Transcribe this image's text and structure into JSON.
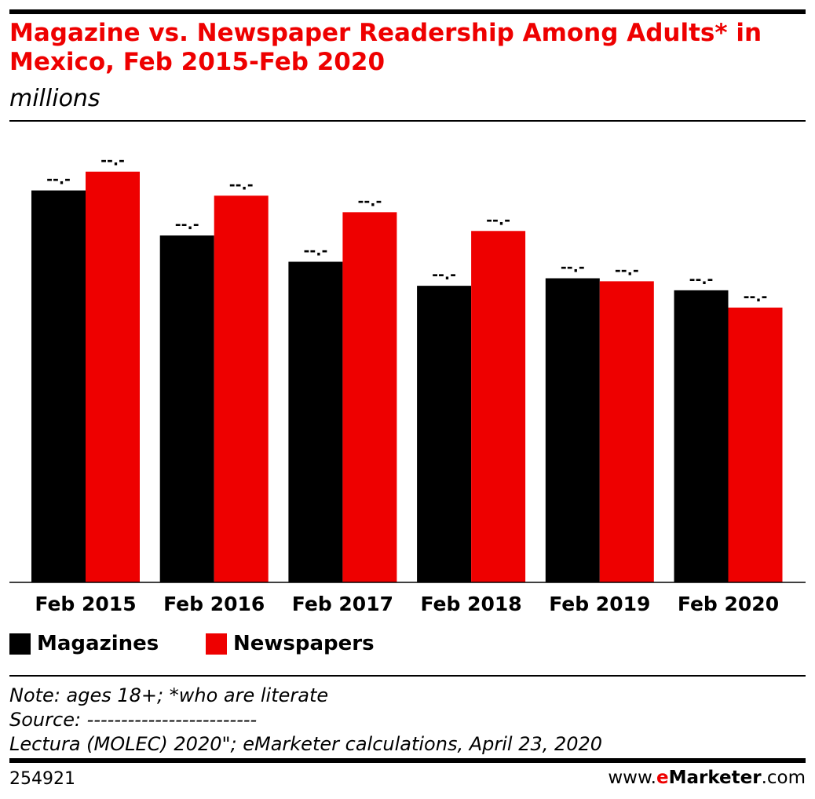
{
  "header": {
    "title": "Magazine vs. Newspaper Readership Among Adults* in Mexico, Feb 2015-Feb 2020",
    "subtitle": "millions"
  },
  "chart_data": {
    "type": "bar",
    "title": "Magazine vs. Newspaper Readership Among Adults* in Mexico, Feb 2015-Feb 2020",
    "subtitle": "millions",
    "categories": [
      "Feb 2015",
      "Feb 2016",
      "Feb 2017",
      "Feb 2018",
      "Feb 2019",
      "Feb 2020"
    ],
    "series": [
      {
        "name": "Magazines",
        "color": "#000000",
        "values": [
          522,
          462,
          427,
          395,
          405,
          389
        ]
      },
      {
        "name": "Newspapers",
        "color": "#ee0000",
        "values": [
          547,
          515,
          493,
          468,
          401,
          366
        ]
      }
    ],
    "data_labels": [
      "--.-",
      "--.-",
      "--.-",
      "--.-",
      "--.-",
      "--.-"
    ],
    "ylim": [
      0,
      600
    ],
    "legend_position": "bottom-left",
    "grid": false
  },
  "legend": {
    "magazines": "Magazines",
    "newspapers": "Newspapers"
  },
  "notes": {
    "note": "Note: ages 18+; *who are literate",
    "source": "Source: -------------------------",
    "source_cont": "Lectura (MOLEC) 2020\"; eMarketer calculations, April 23, 2020"
  },
  "footer": {
    "chart_id": "254921",
    "brand_prefix": "www.",
    "brand_e": "e",
    "brand_name": "Marketer",
    "brand_suffix": ".com"
  }
}
